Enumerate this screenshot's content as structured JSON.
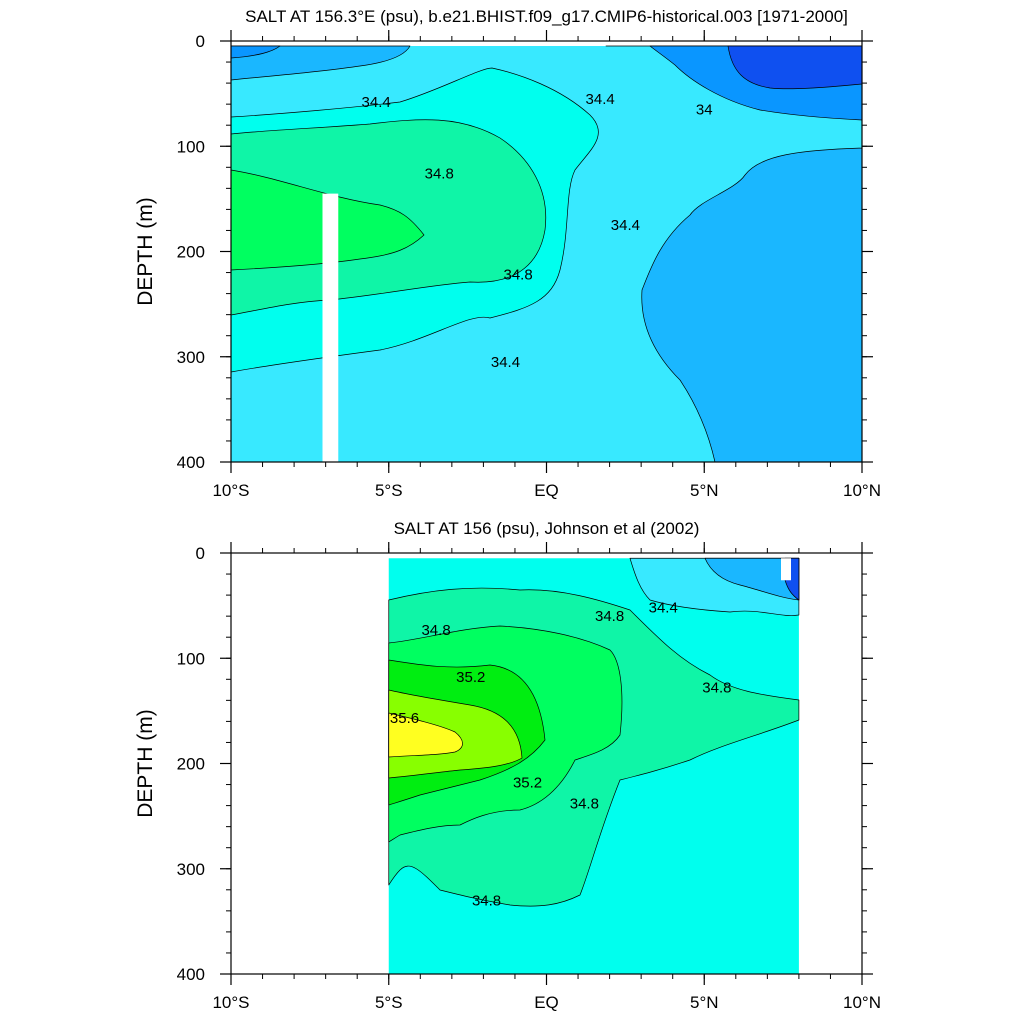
{
  "chart_data": [
    {
      "type": "contour",
      "title": "SALT AT 156.3°E (psu), b.e21.BHIST.f09_g17.CMIP6-historical.003 [1971-2000]",
      "xlabel": "",
      "ylabel": "DEPTH (m)",
      "xlim": [
        -10,
        10
      ],
      "ylim": [
        400,
        0
      ],
      "x_ticks": [
        {
          "value": -10,
          "label": "10°S"
        },
        {
          "value": -5,
          "label": "5°S"
        },
        {
          "value": 0,
          "label": "EQ"
        },
        {
          "value": 5,
          "label": "5°N"
        },
        {
          "value": 10,
          "label": "10°N"
        }
      ],
      "y_ticks": [
        {
          "value": 0,
          "label": "0"
        },
        {
          "value": 100,
          "label": "100"
        },
        {
          "value": 200,
          "label": "200"
        },
        {
          "value": 300,
          "label": "300"
        },
        {
          "value": 400,
          "label": "400"
        }
      ],
      "contour_labels": [
        {
          "text": "34.4",
          "lat": -5.4,
          "depth": 58
        },
        {
          "text": "34.8",
          "lat": -3.4,
          "depth": 126
        },
        {
          "text": "34.8",
          "lat": -0.9,
          "depth": 222
        },
        {
          "text": "34.4",
          "lat": -1.3,
          "depth": 305
        },
        {
          "text": "34.4",
          "lat": 1.7,
          "depth": 55
        },
        {
          "text": "34",
          "lat": 5.0,
          "depth": 65
        },
        {
          "text": "34.4",
          "lat": 2.5,
          "depth": 175
        }
      ],
      "data_gap": {
        "lat_range": [
          -7.1,
          -6.6
        ],
        "depth_range": [
          145,
          400
        ]
      },
      "fill_levels": [
        {
          "level": "< 34.0",
          "color": "#0f50f0"
        },
        {
          "level": "34.0-34.2",
          "color": "#0a96ff"
        },
        {
          "level": "34.2-34.4",
          "color": "#1ab7ff"
        },
        {
          "level": "34.4-34.6",
          "color": "#38e9ff"
        },
        {
          "level": "34.6-34.8",
          "color": "#00ffee"
        },
        {
          "level": "34.8-35.0",
          "color": "#0ff5a7"
        },
        {
          "level": "35.0-35.2",
          "color": "#00ff60"
        }
      ]
    },
    {
      "type": "contour",
      "title": "SALT AT 156 (psu), Johnson et al (2002)",
      "xlabel": "",
      "ylabel": "DEPTH (m)",
      "xlim": [
        -10,
        10
      ],
      "ylim": [
        400,
        0
      ],
      "x_ticks": [
        {
          "value": -10,
          "label": "10°S"
        },
        {
          "value": -5,
          "label": "5°S"
        },
        {
          "value": 0,
          "label": "EQ"
        },
        {
          "value": 5,
          "label": "5°N"
        },
        {
          "value": 10,
          "label": "10°N"
        }
      ],
      "y_ticks": [
        {
          "value": 0,
          "label": "0"
        },
        {
          "value": 100,
          "label": "100"
        },
        {
          "value": 200,
          "label": "200"
        },
        {
          "value": 300,
          "label": "300"
        },
        {
          "value": 400,
          "label": "400"
        }
      ],
      "data_extent": {
        "lat_range": [
          -5,
          8
        ],
        "depth_range": [
          5,
          400
        ]
      },
      "contour_labels": [
        {
          "text": "34.8",
          "lat": -3.5,
          "depth": 73
        },
        {
          "text": "35.2",
          "lat": -2.4,
          "depth": 118
        },
        {
          "text": "35.6",
          "lat": -4.5,
          "depth": 157
        },
        {
          "text": "35.2",
          "lat": -0.6,
          "depth": 218
        },
        {
          "text": "34.8",
          "lat": 1.2,
          "depth": 238
        },
        {
          "text": "34.8",
          "lat": 2.0,
          "depth": 60
        },
        {
          "text": "34.4",
          "lat": 3.7,
          "depth": 52
        },
        {
          "text": "34.8",
          "lat": 5.4,
          "depth": 128
        },
        {
          "text": "34.8",
          "lat": -1.9,
          "depth": 330
        }
      ],
      "fill_levels": [
        {
          "level": "< 34.0",
          "color": "#0f50f0"
        },
        {
          "level": "34.2-34.4",
          "color": "#1ab7ff"
        },
        {
          "level": "34.4-34.6",
          "color": "#38e9ff"
        },
        {
          "level": "34.6-34.8",
          "color": "#00ffee"
        },
        {
          "level": "34.8-35.0",
          "color": "#0ff5a7"
        },
        {
          "level": "35.0-35.2",
          "color": "#00ff60"
        },
        {
          "level": "35.2-35.4",
          "color": "#00ee11"
        },
        {
          "level": "35.4-35.6",
          "color": "#88ff00"
        },
        {
          "level": "> 35.6",
          "color": "#ffff20"
        }
      ]
    }
  ]
}
